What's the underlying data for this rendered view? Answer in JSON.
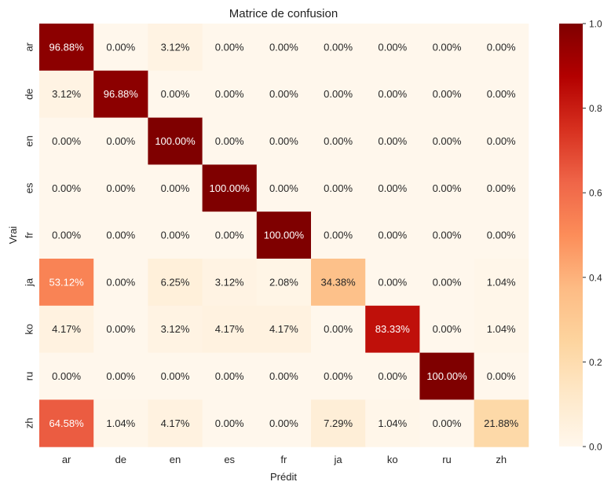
{
  "chart_data": {
    "type": "heatmap",
    "title": "Matrice de confusion",
    "xlabel": "Prédit",
    "ylabel": "Vrai",
    "categories_x": [
      "ar",
      "de",
      "en",
      "es",
      "fr",
      "ja",
      "ko",
      "ru",
      "zh"
    ],
    "categories_y": [
      "ar",
      "de",
      "en",
      "es",
      "fr",
      "ja",
      "ko",
      "ru",
      "zh"
    ],
    "values": [
      [
        0.9688,
        0.0,
        0.0312,
        0.0,
        0.0,
        0.0,
        0.0,
        0.0,
        0.0
      ],
      [
        0.0312,
        0.9688,
        0.0,
        0.0,
        0.0,
        0.0,
        0.0,
        0.0,
        0.0
      ],
      [
        0.0,
        0.0,
        1.0,
        0.0,
        0.0,
        0.0,
        0.0,
        0.0,
        0.0
      ],
      [
        0.0,
        0.0,
        0.0,
        1.0,
        0.0,
        0.0,
        0.0,
        0.0,
        0.0
      ],
      [
        0.0,
        0.0,
        0.0,
        0.0,
        1.0,
        0.0,
        0.0,
        0.0,
        0.0
      ],
      [
        0.5312,
        0.0,
        0.0625,
        0.0312,
        0.0208,
        0.3438,
        0.0,
        0.0,
        0.0104
      ],
      [
        0.0417,
        0.0,
        0.0312,
        0.0417,
        0.0417,
        0.0,
        0.8333,
        0.0,
        0.0104
      ],
      [
        0.0,
        0.0,
        0.0,
        0.0,
        0.0,
        0.0,
        0.0,
        1.0,
        0.0
      ],
      [
        0.6458,
        0.0104,
        0.0417,
        0.0,
        0.0,
        0.0729,
        0.0104,
        0.0,
        0.2188
      ]
    ],
    "cell_labels": [
      [
        "96.88%",
        "0.00%",
        "3.12%",
        "0.00%",
        "0.00%",
        "0.00%",
        "0.00%",
        "0.00%",
        "0.00%"
      ],
      [
        "3.12%",
        "96.88%",
        "0.00%",
        "0.00%",
        "0.00%",
        "0.00%",
        "0.00%",
        "0.00%",
        "0.00%"
      ],
      [
        "0.00%",
        "0.00%",
        "100.00%",
        "0.00%",
        "0.00%",
        "0.00%",
        "0.00%",
        "0.00%",
        "0.00%"
      ],
      [
        "0.00%",
        "0.00%",
        "0.00%",
        "100.00%",
        "0.00%",
        "0.00%",
        "0.00%",
        "0.00%",
        "0.00%"
      ],
      [
        "0.00%",
        "0.00%",
        "0.00%",
        "0.00%",
        "100.00%",
        "0.00%",
        "0.00%",
        "0.00%",
        "0.00%"
      ],
      [
        "53.12%",
        "0.00%",
        "6.25%",
        "3.12%",
        "2.08%",
        "34.38%",
        "0.00%",
        "0.00%",
        "1.04%"
      ],
      [
        "4.17%",
        "0.00%",
        "3.12%",
        "4.17%",
        "4.17%",
        "0.00%",
        "83.33%",
        "0.00%",
        "1.04%"
      ],
      [
        "0.00%",
        "0.00%",
        "0.00%",
        "0.00%",
        "0.00%",
        "0.00%",
        "0.00%",
        "100.00%",
        "0.00%"
      ],
      [
        "64.58%",
        "1.04%",
        "4.17%",
        "0.00%",
        "0.00%",
        "7.29%",
        "1.04%",
        "0.00%",
        "21.88%"
      ]
    ],
    "colorbar": {
      "range": [
        0,
        1
      ],
      "ticks": [
        0.0,
        0.2,
        0.4,
        0.6,
        0.8,
        1.0
      ],
      "tick_labels": [
        "0.0",
        "0.2",
        "0.4",
        "0.6",
        "0.8",
        "1.0"
      ]
    },
    "colormap": "OrRd",
    "colormap_stops": [
      "#fff7ec",
      "#fee8c8",
      "#fdd49e",
      "#fdbb84",
      "#fc8d59",
      "#ef6548",
      "#d7301f",
      "#b30000",
      "#7f0000"
    ],
    "grid": false,
    "legend": "right"
  }
}
